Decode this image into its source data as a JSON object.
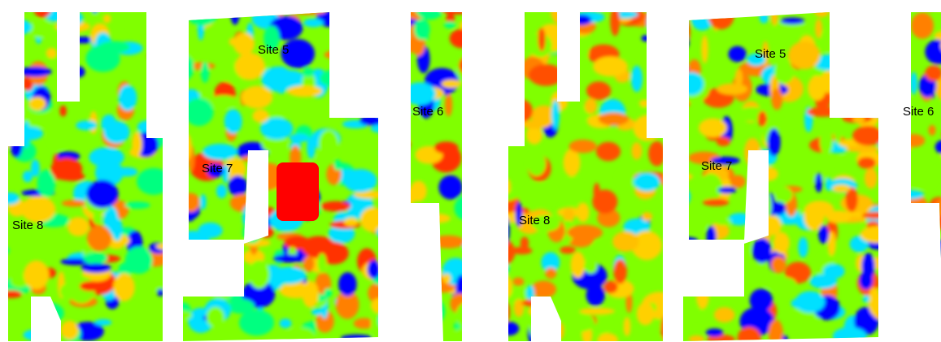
{
  "panels": [
    {
      "labels": [
        "Site 5",
        "Site 6",
        "Site 7",
        "Site 8"
      ]
    },
    {
      "labels": [
        "Site 5",
        "Site 6",
        "Site 7",
        "Site 8"
      ]
    }
  ]
}
